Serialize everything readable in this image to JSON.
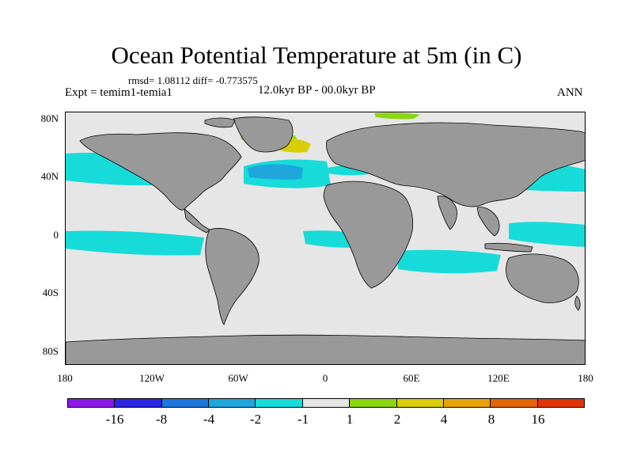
{
  "header": {
    "title": "Ocean Potential Temperature at 5m (in C)",
    "stats": "rmsd= 1.08112 diff= -0.773575",
    "experiment": "Expt = temim1-temia1",
    "period": "12.0kyr BP - 00.0kyr BP",
    "season": "ANN"
  },
  "axes": {
    "lat_ticks": [
      "80N",
      "40N",
      "0",
      "40S",
      "80S"
    ],
    "lon_ticks": [
      "180",
      "120W",
      "60W",
      "0",
      "60E",
      "120E",
      "180"
    ]
  },
  "legend": {
    "colors": [
      "#8a19e8",
      "#2d25e4",
      "#1d78dd",
      "#1fa6dc",
      "#17dbd8",
      "#e6e6e6",
      "#8ad610",
      "#d9cd07",
      "#e7a30a",
      "#e26508",
      "#e0350a"
    ],
    "labels": [
      "-16",
      "-8",
      "-4",
      "-2",
      "-1",
      "1",
      "2",
      "4",
      "8",
      "16"
    ]
  },
  "map": {
    "ocean_color": "#e6e6e6",
    "land_color": "#999999",
    "coastline_color": "#000000"
  }
}
